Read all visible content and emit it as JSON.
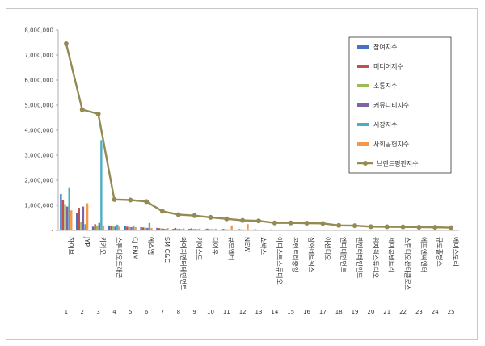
{
  "chart_data": {
    "type": "bar",
    "title": "",
    "xlabel": "",
    "ylabel": "",
    "ylim": [
      0,
      8000000
    ],
    "yticks": [
      "8,000,000",
      "7,000,000",
      "6,000,000",
      "5,000,000",
      "4,000,000",
      "3,000,000",
      "2,000,000",
      "1,000,000",
      "-"
    ],
    "ytick_values": [
      8000000,
      7000000,
      6000000,
      5000000,
      4000000,
      3000000,
      2000000,
      1000000,
      0
    ],
    "legend_position": "top-right",
    "grid": true,
    "indices": [
      "1",
      "2",
      "3",
      "4",
      "5",
      "6",
      "7",
      "8",
      "9",
      "10",
      "11",
      "12",
      "13",
      "14",
      "15",
      "16",
      "17",
      "18",
      "19",
      "20",
      "21",
      "22",
      "23",
      "24",
      "25"
    ],
    "categories": [
      "하이브",
      "JYP",
      "카카오",
      "스튜디오드래곤",
      "CJ ENM",
      "에스엠",
      "SM C&C",
      "와이지엔터테인먼트",
      "키이스트",
      "디어유",
      "큐브엔터",
      "NEW",
      "쇼박스",
      "아티스트스튜디오",
      "콘텐트리중앙",
      "삼화네트웍스",
      "아센디오",
      "엔터테인먼트",
      "팬엔터테인먼트",
      "위지윅스튜디오",
      "제이콘텐트리",
      "스튜디오산타클로스",
      "에프엔씨엔터",
      "큐로홀딩스",
      "에이스토리"
    ],
    "series": [
      {
        "name": "참여지수",
        "color": "#4472c4",
        "values": [
          1450000,
          680000,
          150000,
          200000,
          180000,
          130000,
          100000,
          60000,
          60000,
          50000,
          40000,
          30000,
          35000,
          30000,
          30000,
          25000,
          20000,
          20000,
          15000,
          15000,
          15000,
          12000,
          12000,
          12000,
          10000
        ]
      },
      {
        "name": "미디어지수",
        "color": "#c0504d",
        "values": [
          1200000,
          900000,
          250000,
          180000,
          150000,
          120000,
          90000,
          100000,
          80000,
          70000,
          60000,
          50000,
          45000,
          40000,
          35000,
          30000,
          25000,
          22000,
          20000,
          18000,
          15000,
          13000,
          12000,
          10000,
          10000
        ]
      },
      {
        "name": "소통지수",
        "color": "#9bbb59",
        "values": [
          1050000,
          350000,
          200000,
          160000,
          140000,
          110000,
          80000,
          70000,
          60000,
          50000,
          45000,
          40000,
          35000,
          30000,
          25000,
          22000,
          20000,
          18000,
          15000,
          14000,
          12000,
          11000,
          10000,
          9000,
          8000
        ]
      },
      {
        "name": "커뮤니티지수",
        "color": "#8064a2",
        "values": [
          950000,
          950000,
          300000,
          150000,
          130000,
          100000,
          70000,
          60000,
          55000,
          45000,
          40000,
          35000,
          30000,
          28000,
          25000,
          20000,
          18000,
          16000,
          14000,
          12000,
          11000,
          10000,
          9000,
          8000,
          7000
        ]
      },
      {
        "name": "시장지수",
        "color": "#4bacc6",
        "values": [
          1720000,
          250000,
          3600000,
          230000,
          200000,
          300000,
          60000,
          50000,
          50000,
          40000,
          35000,
          30000,
          25000,
          22000,
          20000,
          18000,
          15000,
          14000,
          12000,
          10000,
          9000,
          8000,
          7000,
          6000,
          5000
        ]
      },
      {
        "name": "사회공헌지수",
        "color": "#f79646",
        "values": [
          800000,
          1080000,
          200000,
          150000,
          130000,
          100000,
          100000,
          80000,
          70000,
          60000,
          200000,
          250000,
          40000,
          35000,
          30000,
          25000,
          20000,
          18000,
          15000,
          12000,
          10000,
          9000,
          8000,
          7000,
          6000
        ]
      }
    ],
    "line_series": {
      "name": "브랜드평판지수",
      "color": "#948a54",
      "values": [
        7450000,
        4820000,
        4650000,
        1230000,
        1210000,
        1150000,
        760000,
        630000,
        590000,
        520000,
        460000,
        400000,
        380000,
        300000,
        300000,
        290000,
        280000,
        200000,
        190000,
        150000,
        145000,
        140000,
        130000,
        125000,
        110000
      ]
    }
  }
}
